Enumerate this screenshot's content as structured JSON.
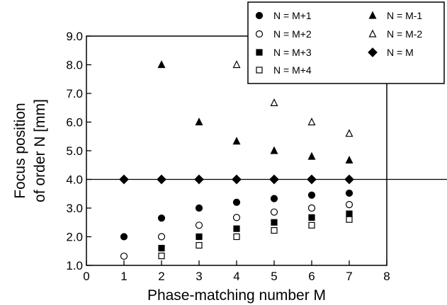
{
  "chart_data": {
    "type": "scatter",
    "title": "",
    "xlabel": "Phase-matching number M",
    "ylabel": [
      "Focus position",
      "of order N [mm]"
    ],
    "xlim": [
      0,
      8
    ],
    "ylim": [
      1.0,
      9.0
    ],
    "xticks": [
      "0",
      "1",
      "2",
      "3",
      "4",
      "5",
      "6",
      "7",
      "8"
    ],
    "yticks": [
      "1.0",
      "2.0",
      "3.0",
      "4.0",
      "5.0",
      "6.0",
      "7.0",
      "8.0",
      "9.0"
    ],
    "grid": false,
    "legend_position": "top-right",
    "series": [
      {
        "name": "N = M+1",
        "marker": "circle-filled",
        "points": [
          [
            1,
            2.0
          ],
          [
            2,
            2.65
          ],
          [
            3,
            3.0
          ],
          [
            4,
            3.2
          ],
          [
            5,
            3.33
          ],
          [
            6,
            3.45
          ],
          [
            7,
            3.52
          ]
        ]
      },
      {
        "name": "N = M+2",
        "marker": "circle-open",
        "points": [
          [
            1,
            1.32
          ],
          [
            2,
            2.0
          ],
          [
            3,
            2.4
          ],
          [
            4,
            2.67
          ],
          [
            5,
            2.86
          ],
          [
            6,
            3.0
          ],
          [
            7,
            3.12
          ]
        ]
      },
      {
        "name": "N = M+3",
        "marker": "square-filled",
        "points": [
          [
            2,
            1.6
          ],
          [
            3,
            2.0
          ],
          [
            4,
            2.28
          ],
          [
            5,
            2.5
          ],
          [
            6,
            2.67
          ],
          [
            7,
            2.8
          ]
        ]
      },
      {
        "name": "N = M+4",
        "marker": "square-open",
        "points": [
          [
            2,
            1.33
          ],
          [
            3,
            1.7
          ],
          [
            4,
            2.0
          ],
          [
            5,
            2.22
          ],
          [
            6,
            2.4
          ],
          [
            7,
            2.6
          ]
        ]
      },
      {
        "name": "N = M-1",
        "marker": "triangle-filled",
        "points": [
          [
            2,
            8.0
          ],
          [
            3,
            6.0
          ],
          [
            4,
            5.33
          ],
          [
            5,
            5.0
          ],
          [
            6,
            4.8
          ],
          [
            7,
            4.67
          ]
        ]
      },
      {
        "name": "N = M-2",
        "marker": "triangle-open",
        "points": [
          [
            4,
            8.0
          ],
          [
            5,
            6.67
          ],
          [
            6,
            6.0
          ],
          [
            7,
            5.6
          ]
        ]
      },
      {
        "name": "N = M",
        "marker": "diamond-filled",
        "points": [
          [
            1,
            4.0
          ],
          [
            2,
            4.0
          ],
          [
            3,
            4.0
          ],
          [
            4,
            4.0
          ],
          [
            5,
            4.0
          ],
          [
            6,
            4.0
          ],
          [
            7,
            4.0
          ]
        ]
      }
    ],
    "reference_line": {
      "y": 4.0
    }
  }
}
